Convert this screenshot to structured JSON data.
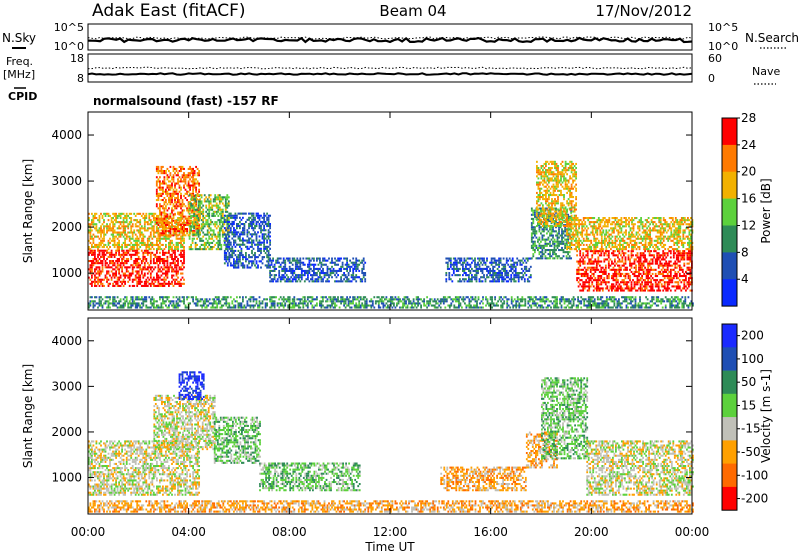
{
  "header": {
    "station": "Adak East (fitACF)",
    "beam": "Beam 04",
    "date": "17/Nov/2012"
  },
  "noise_panel": {
    "left_label": "N.Sky",
    "right_label": "N.Search",
    "left_ticks": [
      "10^5",
      "10^0"
    ],
    "right_ticks": [
      "10^5",
      "10^0"
    ]
  },
  "freq_panel": {
    "left_label_1": "Freq.",
    "left_label_2": "[MHz]",
    "left_ticks": [
      "18",
      "8"
    ],
    "right_label": "Nave",
    "right_ticks": [
      "60",
      "0"
    ]
  },
  "cpid": {
    "label": "CPID",
    "value": "normalsound (fast)  -157 RF"
  },
  "chart_data": [
    {
      "type": "heatmap",
      "quantity": "Power",
      "ylabel": "Slant Range [km]",
      "xlabel": "",
      "xlim": [
        "00:00",
        "24:00"
      ],
      "ylim": [
        200,
        4500
      ],
      "y_ticks": [
        "1000",
        "2000",
        "3000",
        "4000"
      ],
      "x_ticks": [
        "00:00",
        "04:00",
        "08:00",
        "12:00",
        "16:00",
        "20:00",
        "00:00"
      ],
      "colorbar": {
        "label": "Power [dB]",
        "tick_labels": [
          "4",
          "8",
          "12",
          "16",
          "20",
          "24",
          "28"
        ],
        "colors": [
          "#0a2aff",
          "#1f4fb4",
          "#2e8b57",
          "#5cd13c",
          "#f2b100",
          "#ff7a00",
          "#ff0000"
        ]
      },
      "regions": [
        {
          "t0": 0.0,
          "t1": 3.8,
          "r0": 700,
          "r1": 1500,
          "level": 6
        },
        {
          "t0": 0.0,
          "t1": 3.8,
          "r0": 1500,
          "r1": 2300,
          "level": 4
        },
        {
          "t0": 2.7,
          "t1": 4.4,
          "r0": 1800,
          "r1": 3300,
          "level": 5
        },
        {
          "t0": 4.0,
          "t1": 5.6,
          "r0": 1500,
          "r1": 2700,
          "level": 3
        },
        {
          "t0": 5.4,
          "t1": 7.2,
          "r0": 1100,
          "r1": 2300,
          "level": 1
        },
        {
          "t0": 7.2,
          "t1": 11.0,
          "r0": 800,
          "r1": 1300,
          "level": 1
        },
        {
          "t0": 14.2,
          "t1": 17.6,
          "r0": 800,
          "r1": 1300,
          "level": 1
        },
        {
          "t0": 17.6,
          "t1": 19.2,
          "r0": 1300,
          "r1": 2400,
          "level": 2
        },
        {
          "t0": 17.8,
          "t1": 19.4,
          "r0": 2000,
          "r1": 3400,
          "level": 4
        },
        {
          "t0": 19.4,
          "t1": 24.0,
          "r0": 600,
          "r1": 1500,
          "level": 6
        },
        {
          "t0": 19.0,
          "t1": 24.0,
          "r0": 1500,
          "r1": 2200,
          "level": 4
        },
        {
          "t0": 0.0,
          "t1": 24.0,
          "r0": 230,
          "r1": 500,
          "level": 2
        }
      ]
    },
    {
      "type": "heatmap",
      "quantity": "Velocity",
      "ylabel": "Slant Range [km]",
      "xlabel": "Time UT",
      "xlim": [
        "00:00",
        "24:00"
      ],
      "ylim": [
        200,
        4500
      ],
      "y_ticks": [
        "1000",
        "2000",
        "3000",
        "4000"
      ],
      "x_ticks": [
        "00:00",
        "04:00",
        "08:00",
        "12:00",
        "16:00",
        "20:00",
        "00:00"
      ],
      "colorbar": {
        "label": "Velocity [m s-1]",
        "tick_labels": [
          "200",
          "100",
          "50",
          "15",
          "-15",
          "-50",
          "-100",
          "-200"
        ],
        "colors": [
          "#1a2aff",
          "#1f4fb4",
          "#2e8b57",
          "#5cd13c",
          "#c0c0b8",
          "#ffa000",
          "#ff6a00",
          "#ff0000"
        ]
      },
      "regions": [
        {
          "t0": 0.0,
          "t1": 4.4,
          "r0": 600,
          "r1": 1800,
          "level": 4
        },
        {
          "t0": 2.6,
          "t1": 5.0,
          "r0": 1600,
          "r1": 2800,
          "level": 4
        },
        {
          "t0": 3.6,
          "t1": 4.6,
          "r0": 2700,
          "r1": 3300,
          "level": 0
        },
        {
          "t0": 5.0,
          "t1": 6.8,
          "r0": 1300,
          "r1": 2300,
          "level": 3
        },
        {
          "t0": 6.8,
          "t1": 10.8,
          "r0": 700,
          "r1": 1300,
          "level": 3
        },
        {
          "t0": 14.0,
          "t1": 17.4,
          "r0": 700,
          "r1": 1200,
          "level": 5
        },
        {
          "t0": 17.4,
          "t1": 18.6,
          "r0": 1200,
          "r1": 2000,
          "level": 5
        },
        {
          "t0": 18.0,
          "t1": 19.8,
          "r0": 1400,
          "r1": 3200,
          "level": 3
        },
        {
          "t0": 19.8,
          "t1": 24.0,
          "r0": 600,
          "r1": 1800,
          "level": 4
        },
        {
          "t0": 0.0,
          "t1": 24.0,
          "r0": 230,
          "r1": 500,
          "level": 5
        }
      ]
    }
  ]
}
